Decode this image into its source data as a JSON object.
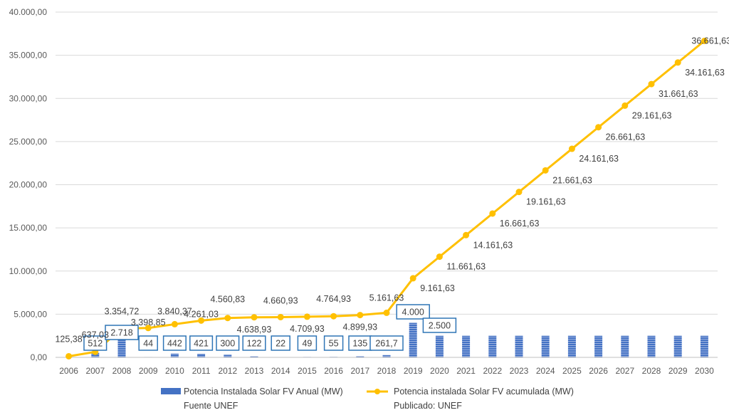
{
  "chart_data": {
    "type": "bar+line",
    "categories": [
      "2006",
      "2007",
      "2008",
      "2009",
      "2010",
      "2011",
      "2012",
      "2013",
      "2014",
      "2015",
      "2016",
      "2017",
      "2018",
      "2019",
      "2020",
      "2021",
      "2022",
      "2023",
      "2024",
      "2025",
      "2026",
      "2027",
      "2028",
      "2029",
      "2030"
    ],
    "y_ticks": [
      "0,00",
      "5.000,00",
      "10.000,00",
      "15.000,00",
      "20.000,00",
      "25.000,00",
      "30.000,00",
      "35.000,00",
      "40.000,00"
    ],
    "ylim": [
      0,
      40000
    ],
    "grid": true,
    "legend_position": "bottom",
    "series": [
      {
        "name": "Potencia Instalada Solar FV Anual (MW)",
        "subtitle": "Fuente UNEF",
        "type": "bar",
        "color": "#4472C4",
        "values": [
          0,
          512,
          2718,
          44,
          442,
          421,
          300,
          122,
          22,
          49,
          55,
          135,
          261.7,
          4000,
          2500,
          2500,
          2500,
          2500,
          2500,
          2500,
          2500,
          2500,
          2500,
          2500,
          2500
        ],
        "labels": [
          "",
          "512",
          "2.718",
          "44",
          "442",
          "421",
          "300",
          "122",
          "22",
          "49",
          "55",
          "135",
          "261,7",
          "4.000",
          "2.500",
          "",
          "",
          "",
          "",
          "",
          "",
          "",
          "",
          "",
          ""
        ]
      },
      {
        "name": "Potencia instalada Solar FV acumulada (MW)",
        "subtitle": "Publicado: UNEF",
        "type": "line",
        "color": "#FFC000",
        "values": [
          125.38,
          637.03,
          3354.72,
          3398.85,
          3840.37,
          4261.03,
          4560.83,
          4638.93,
          4660.93,
          4709.93,
          4764.93,
          4899.93,
          5161.63,
          9161.63,
          11661.63,
          14161.63,
          16661.63,
          19161.63,
          21661.63,
          24161.63,
          26661.63,
          29161.63,
          31661.63,
          34161.63,
          36661.63
        ],
        "labels": [
          "125,38",
          "637,03",
          "3.354,72",
          "3.398,85",
          "3.840,37",
          "4.261,03",
          "4.560,83",
          "4.638,93",
          "4.660,93",
          "4.709,93",
          "4.764,93",
          "4.899,93",
          "5.161,63",
          "9.161,63",
          "11.661,63",
          "14.161,63",
          "16.661,63",
          "19.161,63",
          "21.661,63",
          "24.161,63",
          "26.661,63",
          "29.161,63",
          "31.661,63",
          "34.161,63",
          "36.661,63"
        ]
      }
    ]
  }
}
